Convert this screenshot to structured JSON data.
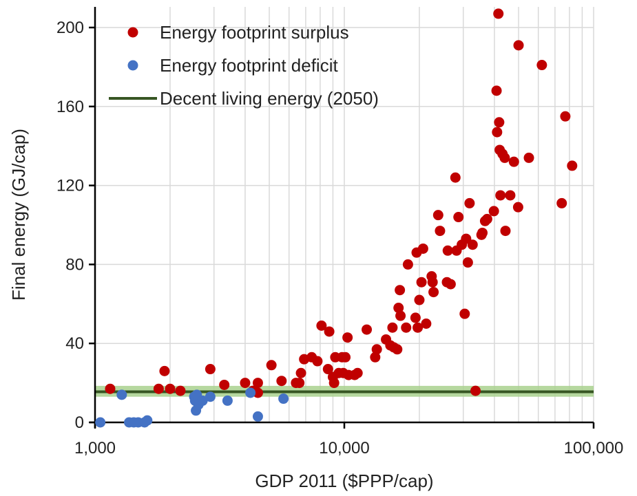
{
  "chart_data": {
    "type": "scatter",
    "title": "",
    "xlabel": "GDP 2011 ($PPP/cap)",
    "ylabel": "Final energy (GJ/cap)",
    "x_scale": "log",
    "xlim": [
      1000,
      100000
    ],
    "ylim": [
      0,
      210
    ],
    "x_ticks": [
      1000,
      10000,
      100000
    ],
    "x_tick_labels": [
      "1,000",
      "10,000",
      "100,000"
    ],
    "y_ticks": [
      0,
      40,
      80,
      120,
      160,
      200
    ],
    "y_tick_labels": [
      "0",
      "40",
      "80",
      "120",
      "160",
      "200"
    ],
    "grid": true,
    "legend_position": "top-left",
    "colors": {
      "surplus": "#c00000",
      "deficit": "#4472c4",
      "decent_line": "#375623",
      "decent_band": "#a9d18e"
    },
    "series": [
      {
        "name": "Energy footprint surplus",
        "points": [
          [
            1150,
            17
          ],
          [
            1800,
            17
          ],
          [
            1900,
            26
          ],
          [
            2000,
            17
          ],
          [
            2200,
            16
          ],
          [
            2900,
            27
          ],
          [
            3300,
            19
          ],
          [
            4000,
            20
          ],
          [
            4300,
            16
          ],
          [
            4500,
            20
          ],
          [
            4500,
            15
          ],
          [
            5100,
            29
          ],
          [
            5600,
            21
          ],
          [
            6400,
            20
          ],
          [
            6600,
            20
          ],
          [
            6700,
            25
          ],
          [
            6900,
            32
          ],
          [
            7400,
            33
          ],
          [
            7800,
            31
          ],
          [
            8100,
            49
          ],
          [
            8600,
            27
          ],
          [
            8700,
            46
          ],
          [
            9000,
            23
          ],
          [
            9100,
            20
          ],
          [
            9200,
            33
          ],
          [
            9500,
            25
          ],
          [
            9800,
            33
          ],
          [
            9900,
            25
          ],
          [
            10100,
            33
          ],
          [
            10300,
            43
          ],
          [
            10400,
            24
          ],
          [
            11000,
            24
          ],
          [
            11300,
            25
          ],
          [
            12300,
            47
          ],
          [
            13300,
            33
          ],
          [
            13500,
            37
          ],
          [
            14700,
            42
          ],
          [
            15300,
            39
          ],
          [
            15600,
            48
          ],
          [
            15800,
            38
          ],
          [
            16300,
            37
          ],
          [
            16500,
            58
          ],
          [
            16700,
            67
          ],
          [
            16800,
            54
          ],
          [
            17700,
            48
          ],
          [
            18000,
            80
          ],
          [
            19300,
            53
          ],
          [
            19500,
            86
          ],
          [
            19700,
            48
          ],
          [
            20000,
            62
          ],
          [
            20400,
            71
          ],
          [
            20700,
            88
          ],
          [
            21300,
            50
          ],
          [
            22400,
            74
          ],
          [
            22600,
            71
          ],
          [
            22800,
            66
          ],
          [
            23800,
            105
          ],
          [
            24200,
            97
          ],
          [
            25800,
            71
          ],
          [
            26000,
            87
          ],
          [
            26700,
            70
          ],
          [
            27900,
            124
          ],
          [
            28200,
            87
          ],
          [
            28700,
            104
          ],
          [
            29600,
            90
          ],
          [
            30400,
            55
          ],
          [
            30800,
            93
          ],
          [
            31300,
            81
          ],
          [
            31800,
            111
          ],
          [
            32700,
            90
          ],
          [
            33600,
            16
          ],
          [
            35500,
            95
          ],
          [
            35800,
            96
          ],
          [
            36700,
            102
          ],
          [
            37400,
            103
          ],
          [
            39800,
            107
          ],
          [
            40800,
            168
          ],
          [
            41000,
            147
          ],
          [
            41500,
            207
          ],
          [
            41800,
            152
          ],
          [
            42000,
            138
          ],
          [
            42300,
            115
          ],
          [
            43100,
            136
          ],
          [
            44000,
            134
          ],
          [
            44300,
            97
          ],
          [
            46300,
            115
          ],
          [
            47900,
            132
          ],
          [
            49800,
            109
          ],
          [
            50000,
            191
          ],
          [
            55000,
            134
          ],
          [
            62000,
            181
          ],
          [
            74500,
            111
          ],
          [
            77000,
            155
          ],
          [
            82000,
            130
          ]
        ]
      },
      {
        "name": "Energy footprint deficit",
        "points": [
          [
            1050,
            0
          ],
          [
            1280,
            14
          ],
          [
            1370,
            0
          ],
          [
            1430,
            0
          ],
          [
            1490,
            0
          ],
          [
            1580,
            0
          ],
          [
            1620,
            1
          ],
          [
            2500,
            13
          ],
          [
            2520,
            11
          ],
          [
            2540,
            6
          ],
          [
            2560,
            14
          ],
          [
            2600,
            9
          ],
          [
            2700,
            11
          ],
          [
            2900,
            13
          ],
          [
            3400,
            11
          ],
          [
            4200,
            15
          ],
          [
            4500,
            3
          ],
          [
            5700,
            12
          ]
        ]
      }
    ],
    "reference_line": {
      "name": "Decent living energy (2050)",
      "value": 15.5,
      "band": [
        13,
        18.5
      ]
    }
  }
}
